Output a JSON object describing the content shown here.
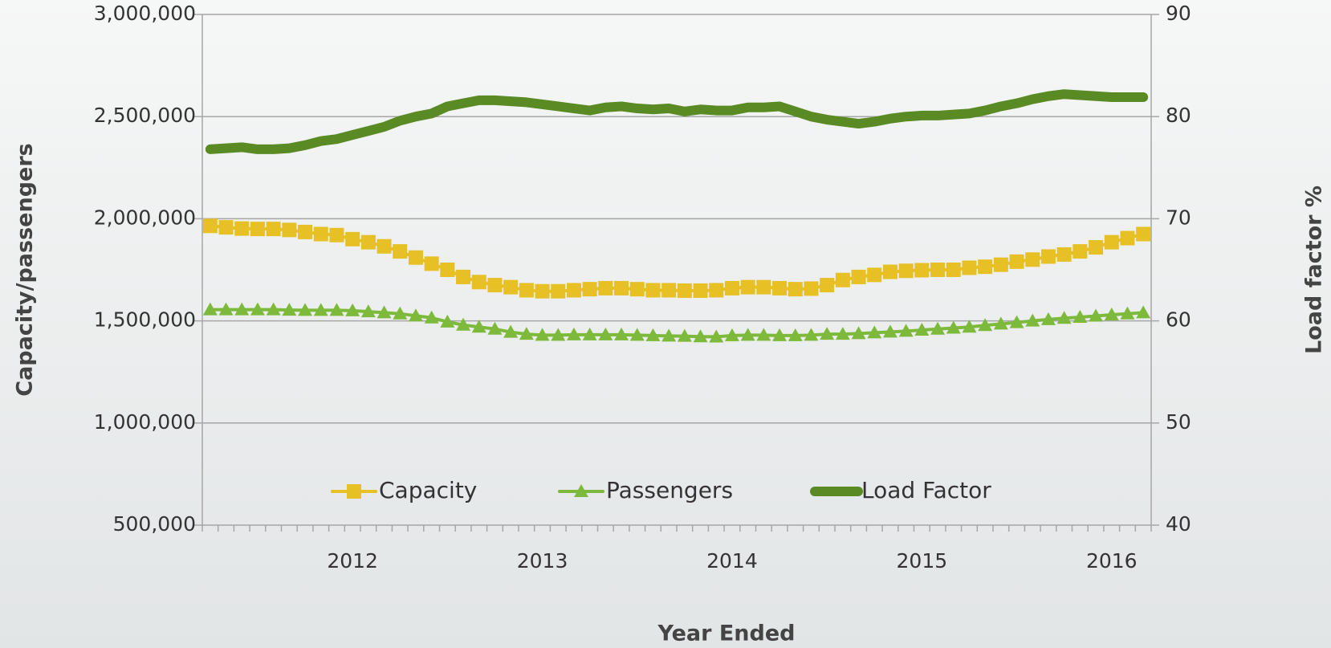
{
  "chart_data": {
    "type": "line",
    "xlabel": "Year Ended",
    "ylabel": "Capacity/passengers",
    "y2label": "Load factor %",
    "categories": [
      null,
      null,
      null,
      null,
      null,
      null,
      null,
      null,
      null,
      "2012",
      null,
      null,
      null,
      null,
      null,
      null,
      null,
      null,
      null,
      null,
      null,
      "2013",
      null,
      null,
      null,
      null,
      null,
      null,
      null,
      null,
      null,
      null,
      null,
      "2014",
      null,
      null,
      null,
      null,
      null,
      null,
      null,
      null,
      null,
      null,
      null,
      "2015",
      null,
      null,
      null,
      null,
      null,
      null,
      null,
      null,
      null,
      null,
      null,
      "2016",
      null,
      null
    ],
    "ylim": [
      500000,
      3000000
    ],
    "yticks": [
      {
        "value": 500000,
        "label": "500,000"
      },
      {
        "value": 1000000,
        "label": "1,000,000"
      },
      {
        "value": 1500000,
        "label": "1,500,000"
      },
      {
        "value": 2000000,
        "label": "2,000,000"
      },
      {
        "value": 2500000,
        "label": "2,500,000"
      },
      {
        "value": 3000000,
        "label": "3,000,000"
      }
    ],
    "y2lim": [
      40,
      90
    ],
    "y2ticks": [
      40,
      50,
      60,
      70,
      80,
      90
    ],
    "grid": true,
    "legend": "bottom",
    "series": [
      {
        "name": "Capacity",
        "color": "#e6c025",
        "marker": "square",
        "values": [
          1965000,
          1958000,
          1952000,
          1950000,
          1950000,
          1945000,
          1935000,
          1925000,
          1920000,
          1900000,
          1885000,
          1865000,
          1840000,
          1810000,
          1780000,
          1750000,
          1715000,
          1690000,
          1675000,
          1665000,
          1650000,
          1645000,
          1645000,
          1650000,
          1655000,
          1660000,
          1660000,
          1655000,
          1650000,
          1650000,
          1648000,
          1648000,
          1650000,
          1660000,
          1665000,
          1665000,
          1660000,
          1655000,
          1658000,
          1675000,
          1700000,
          1715000,
          1725000,
          1740000,
          1745000,
          1748000,
          1750000,
          1750000,
          1760000,
          1765000,
          1775000,
          1790000,
          1800000,
          1815000,
          1825000,
          1840000,
          1860000,
          1885000,
          1905000,
          1925000
        ]
      },
      {
        "name": "Passengers",
        "color": "#7dba3c",
        "marker": "triangle",
        "values": [
          1555000,
          1555000,
          1555000,
          1555000,
          1555000,
          1553000,
          1552000,
          1552000,
          1552000,
          1550000,
          1545000,
          1540000,
          1535000,
          1525000,
          1515000,
          1495000,
          1480000,
          1470000,
          1460000,
          1445000,
          1435000,
          1430000,
          1430000,
          1432000,
          1432000,
          1432000,
          1432000,
          1430000,
          1428000,
          1426000,
          1425000,
          1423000,
          1422000,
          1428000,
          1430000,
          1430000,
          1428000,
          1428000,
          1430000,
          1435000,
          1435000,
          1438000,
          1442000,
          1446000,
          1450000,
          1455000,
          1460000,
          1465000,
          1470000,
          1478000,
          1485000,
          1492000,
          1500000,
          1507000,
          1513000,
          1518000,
          1524000,
          1530000,
          1535000,
          1540000
        ]
      },
      {
        "name": "Load Factor",
        "color": "#5a8a23",
        "marker": "none",
        "axis": "y2",
        "values": [
          76.8,
          76.9,
          77.0,
          76.8,
          76.8,
          76.9,
          77.2,
          77.6,
          77.8,
          78.2,
          78.6,
          79.0,
          79.6,
          80.0,
          80.3,
          81.0,
          81.3,
          81.6,
          81.6,
          81.5,
          81.4,
          81.2,
          81.0,
          80.8,
          80.6,
          80.9,
          81.0,
          80.8,
          80.7,
          80.8,
          80.5,
          80.7,
          80.6,
          80.6,
          80.9,
          80.9,
          81.0,
          80.5,
          80.0,
          79.7,
          79.5,
          79.3,
          79.5,
          79.8,
          80.0,
          80.1,
          80.1,
          80.2,
          80.3,
          80.6,
          81.0,
          81.3,
          81.7,
          82.0,
          82.2,
          82.1,
          82.0,
          81.9,
          81.9,
          81.9
        ]
      }
    ]
  }
}
